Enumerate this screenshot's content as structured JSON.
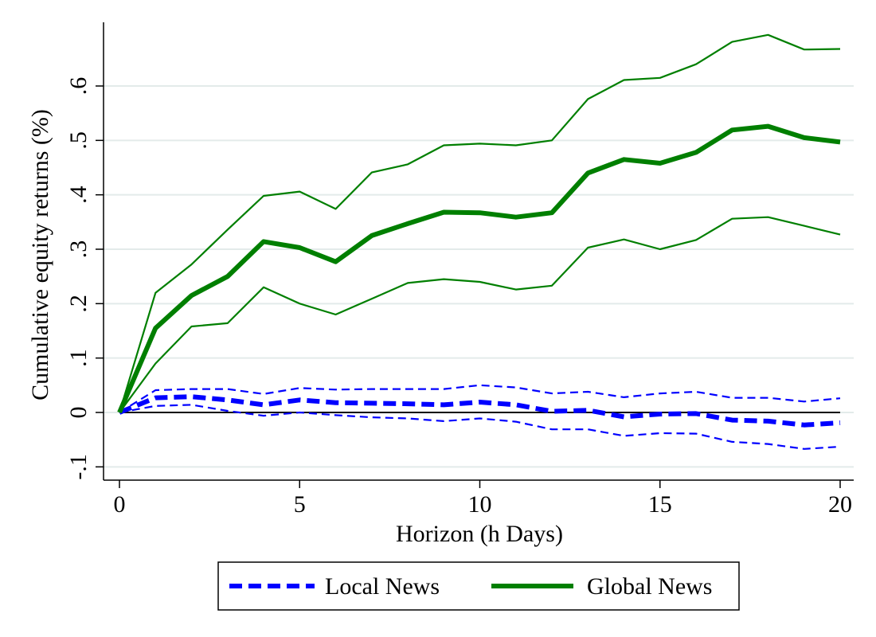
{
  "chart_data": {
    "type": "line",
    "xlabel": "Horizon (h Days)",
    "ylabel": "Cumulative equity returns (%)",
    "xlim": [
      0,
      20
    ],
    "ylim": [
      -0.1,
      0.7
    ],
    "x_ticks": [
      0,
      5,
      10,
      15,
      20
    ],
    "x_tick_labels": [
      "0",
      "5",
      "10",
      "15",
      "20"
    ],
    "y_ticks": [
      -0.1,
      0,
      0.1,
      0.2,
      0.3,
      0.4,
      0.5,
      0.6
    ],
    "y_tick_labels": [
      "-.1",
      "0",
      ".1",
      ".2",
      ".3",
      ".4",
      ".5",
      ".6"
    ],
    "grid": "horizontal",
    "zero_line": true,
    "legend_position": "bottom",
    "x": [
      0,
      1,
      2,
      3,
      4,
      5,
      6,
      7,
      8,
      9,
      10,
      11,
      12,
      13,
      14,
      15,
      16,
      17,
      18,
      19,
      20
    ],
    "series": [
      {
        "name": "Local News",
        "color": "#0000ff",
        "style": "dashed",
        "values": [
          0,
          0.027,
          0.029,
          0.023,
          0.014,
          0.023,
          0.018,
          0.017,
          0.016,
          0.014,
          0.019,
          0.014,
          0.002,
          0.004,
          -0.008,
          -0.003,
          -0.002,
          -0.014,
          -0.016,
          -0.023,
          -0.019
        ],
        "upper": [
          0,
          0.041,
          0.043,
          0.043,
          0.034,
          0.045,
          0.042,
          0.043,
          0.043,
          0.043,
          0.05,
          0.046,
          0.035,
          0.038,
          0.028,
          0.035,
          0.038,
          0.027,
          0.027,
          0.02,
          0.026
        ],
        "lower": [
          0,
          0.012,
          0.014,
          0.003,
          -0.006,
          0.0,
          -0.005,
          -0.009,
          -0.011,
          -0.016,
          -0.011,
          -0.017,
          -0.031,
          -0.031,
          -0.043,
          -0.038,
          -0.039,
          -0.054,
          -0.058,
          -0.067,
          -0.063
        ]
      },
      {
        "name": "Global News",
        "color": "#007f00",
        "style": "solid",
        "values": [
          0,
          0.155,
          0.215,
          0.25,
          0.314,
          0.303,
          0.277,
          0.325,
          0.347,
          0.368,
          0.367,
          0.359,
          0.367,
          0.44,
          0.465,
          0.458,
          0.478,
          0.519,
          0.526,
          0.505,
          0.497
        ],
        "upper": [
          0,
          0.22,
          0.272,
          0.336,
          0.398,
          0.406,
          0.374,
          0.441,
          0.456,
          0.491,
          0.494,
          0.491,
          0.5,
          0.576,
          0.611,
          0.615,
          0.64,
          0.681,
          0.694,
          0.667,
          0.668
        ],
        "lower": [
          0,
          0.09,
          0.158,
          0.164,
          0.23,
          0.2,
          0.18,
          0.209,
          0.238,
          0.245,
          0.24,
          0.226,
          0.233,
          0.303,
          0.318,
          0.3,
          0.317,
          0.356,
          0.359,
          0.343,
          0.327
        ]
      }
    ]
  }
}
